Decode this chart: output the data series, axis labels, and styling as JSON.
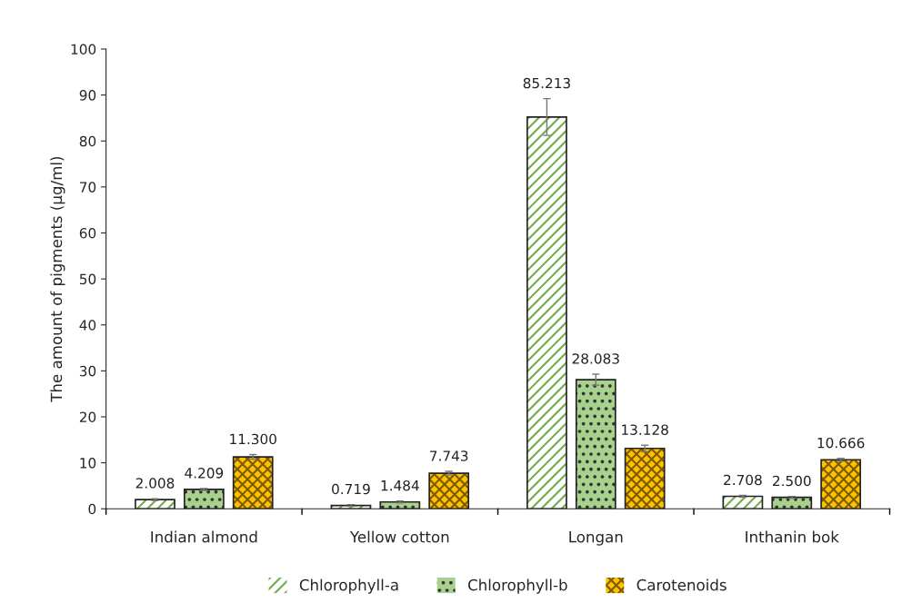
{
  "chart_data": {
    "type": "bar",
    "ylabel": "The amount of pigments (µg/ml)",
    "categories": [
      "Indian almond",
      "Yellow cotton",
      "Longan",
      "Inthanin bok"
    ],
    "series": [
      {
        "name": "Chlorophyll-a",
        "color": "#70ad47",
        "values": [
          2.008,
          0.719,
          85.213,
          2.708
        ],
        "errors": [
          0.2,
          0.2,
          4.0,
          0.2
        ],
        "value_labels": [
          "2.008",
          "0.719",
          "85.213",
          "2.708"
        ]
      },
      {
        "name": "Chlorophyll-b",
        "color": "#a9d18e",
        "values": [
          4.209,
          1.484,
          28.083,
          2.5
        ],
        "errors": [
          0.2,
          0.2,
          1.2,
          0.2
        ],
        "value_labels": [
          "4.209",
          "1.484",
          "28.083",
          "2.500"
        ]
      },
      {
        "name": "Carotenoids",
        "color": "#ffc000",
        "values": [
          11.3,
          7.743,
          13.128,
          10.666
        ],
        "errors": [
          0.5,
          0.4,
          0.7,
          0.3
        ],
        "value_labels": [
          "11.300",
          "7.743",
          "13.128",
          "10.666"
        ]
      }
    ],
    "ylim": [
      0,
      100
    ],
    "yticks": [
      0,
      10,
      20,
      30,
      40,
      50,
      60,
      70,
      80,
      90,
      100
    ],
    "grid": false,
    "legend": "bottom"
  }
}
